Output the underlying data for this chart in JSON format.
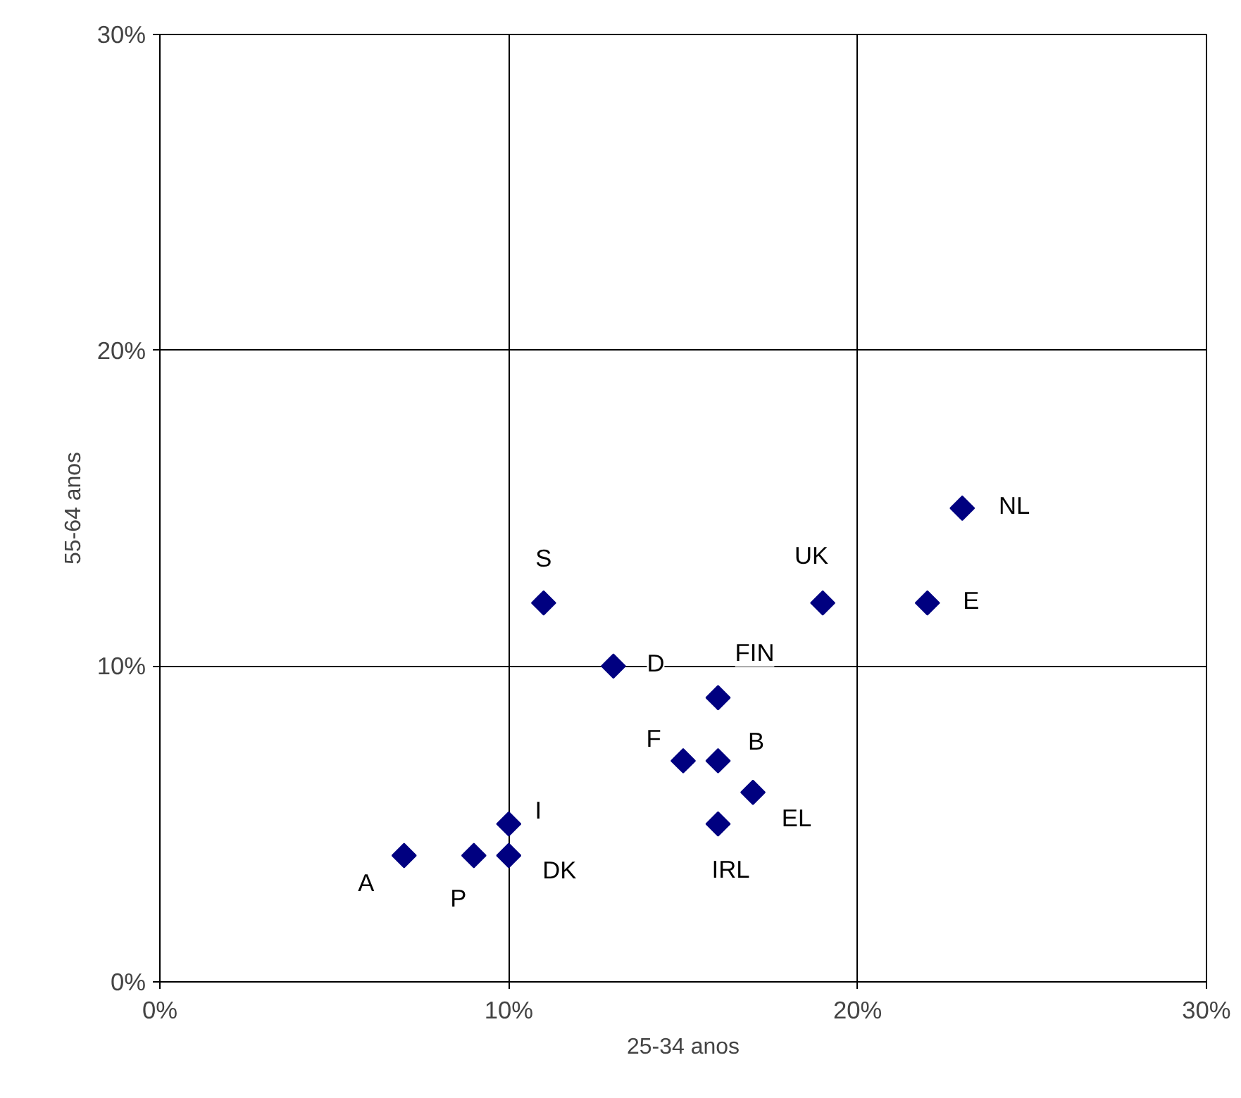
{
  "chart_data": {
    "type": "scatter",
    "xlabel": "25-34 anos",
    "ylabel": "55-64 anos",
    "x": [
      7,
      9,
      10,
      10,
      11,
      13,
      15,
      16,
      16,
      16,
      17,
      19,
      22,
      23
    ],
    "series": [
      {
        "color": "#000080",
        "values": [
          4,
          4,
          4,
          5,
          12,
          10,
          7,
          7,
          9,
          5,
          6,
          12,
          12,
          15
        ]
      }
    ],
    "xlim": [
      0,
      30
    ],
    "ylim": [
      0,
      30
    ],
    "xticks": [
      {
        "value": 0,
        "label": "0%"
      },
      {
        "value": 10,
        "label": "10%"
      },
      {
        "value": 20,
        "label": "20%"
      },
      {
        "value": 30,
        "label": "30%"
      }
    ],
    "yticks": [
      {
        "value": 0,
        "label": "0%"
      },
      {
        "value": 10,
        "label": "10%"
      },
      {
        "value": 20,
        "label": "20%"
      },
      {
        "value": 30,
        "label": "30%"
      }
    ],
    "grid": true,
    "marker": "diamond",
    "annotations": [
      {
        "text": "A",
        "x": 7,
        "y": 4
      },
      {
        "text": "P",
        "x": 9,
        "y": 4
      },
      {
        "text": "DK",
        "x": 10,
        "y": 4
      },
      {
        "text": "I",
        "x": 10,
        "y": 5
      },
      {
        "text": "S",
        "x": 11,
        "y": 12
      },
      {
        "text": "D",
        "x": 13,
        "y": 10
      },
      {
        "text": "F",
        "x": 15,
        "y": 7
      },
      {
        "text": "B",
        "x": 16,
        "y": 7
      },
      {
        "text": "FIN",
        "x": 16,
        "y": 9
      },
      {
        "text": "IRL",
        "x": 16,
        "y": 5
      },
      {
        "text": "EL",
        "x": 17,
        "y": 6
      },
      {
        "text": "UK",
        "x": 19,
        "y": 12
      },
      {
        "text": "E",
        "x": 22,
        "y": 12
      },
      {
        "text": "NL",
        "x": 23,
        "y": 15
      }
    ]
  }
}
